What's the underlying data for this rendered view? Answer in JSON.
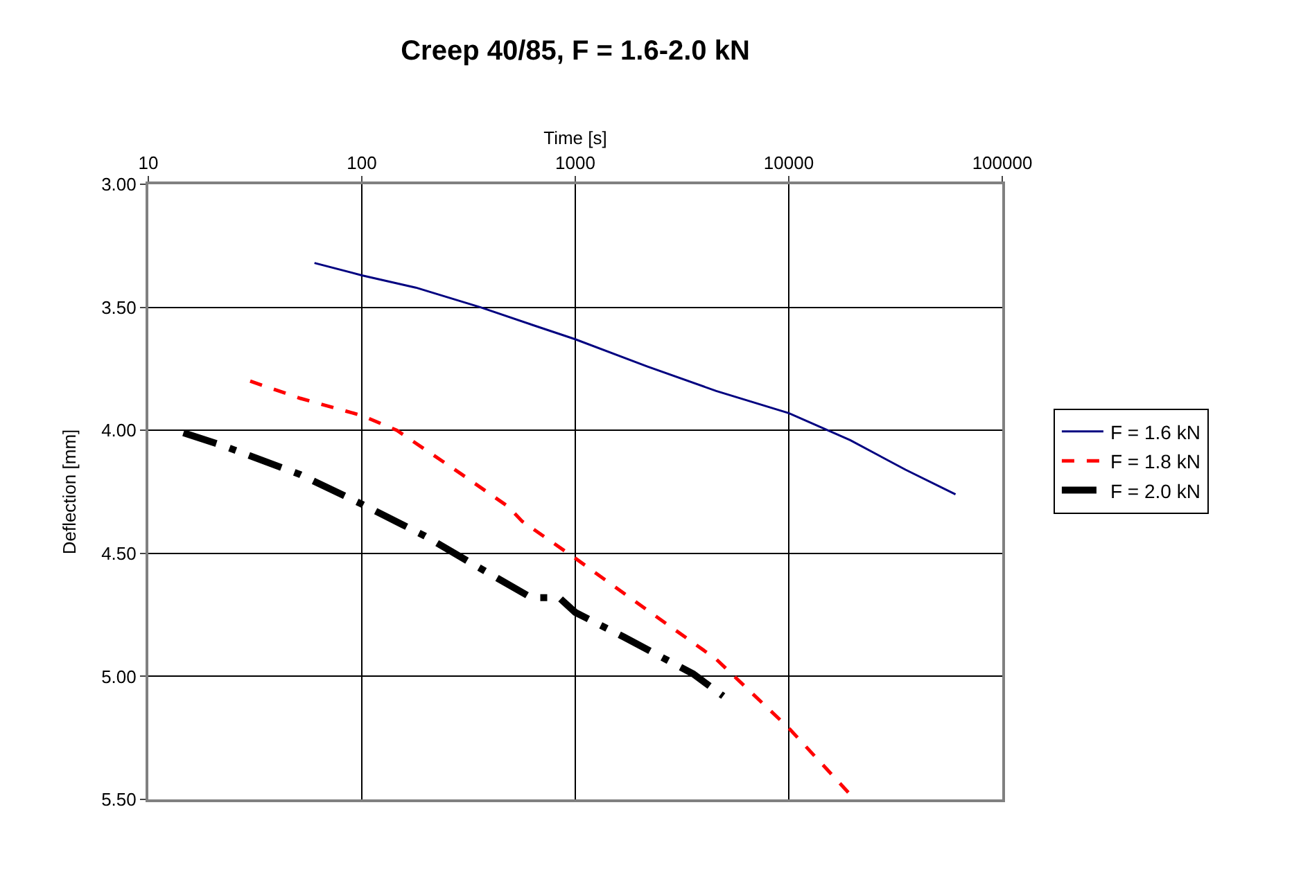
{
  "chart_data": {
    "type": "line",
    "title": "Creep 40/85, F = 1.6-2.0 kN",
    "xlabel": "Time [s]",
    "ylabel": "Deflection [mm]",
    "log": "x",
    "xlim": [
      10,
      100000
    ],
    "xticks": [
      10,
      100,
      1000,
      10000,
      100000
    ],
    "ylim": [
      5.5,
      3.0
    ],
    "yticks": [
      {
        "value": 3.0,
        "label": "3.00"
      },
      {
        "value": 3.5,
        "label": "3.50"
      },
      {
        "value": 4.0,
        "label": "4.00"
      },
      {
        "value": 4.5,
        "label": "4.50"
      },
      {
        "value": 5.0,
        "label": "5.00"
      },
      {
        "value": 5.5,
        "label": "5.50"
      }
    ],
    "grid": true,
    "legend": "right",
    "marker": "none",
    "series": [
      {
        "name": "F = 1.6 kN",
        "color": "#000080",
        "line_style": "solid",
        "x": [
          60,
          100,
          179,
          360,
          622,
          1000,
          2167,
          4570,
          10000,
          19400,
          35200,
          60400
        ],
        "values": [
          3.32,
          3.37,
          3.42,
          3.5,
          3.57,
          3.63,
          3.74,
          3.84,
          3.93,
          4.04,
          4.16,
          4.26
        ]
      },
      {
        "name": "F = 1.8 kN",
        "color": "#ff0000",
        "line_style": "dashed",
        "x": [
          30,
          51.5,
          100,
          146,
          295,
          485,
          564,
          1000,
          2167,
          4570,
          10000,
          19400
        ],
        "values": [
          3.8,
          3.87,
          3.94,
          4.0,
          4.18,
          4.31,
          4.37,
          4.52,
          4.73,
          4.93,
          5.21,
          5.48
        ]
      },
      {
        "name": "F = 2.0 kN",
        "color": "#000000",
        "line_style": "dashdot",
        "x": [
          14.6,
          22,
          51.5,
          100,
          198,
          326,
          622,
          840,
          1000,
          1687,
          3565,
          4930
        ],
        "values": [
          4.01,
          4.06,
          4.18,
          4.3,
          4.43,
          4.54,
          4.68,
          4.68,
          4.74,
          4.84,
          4.99,
          5.08
        ]
      }
    ]
  }
}
